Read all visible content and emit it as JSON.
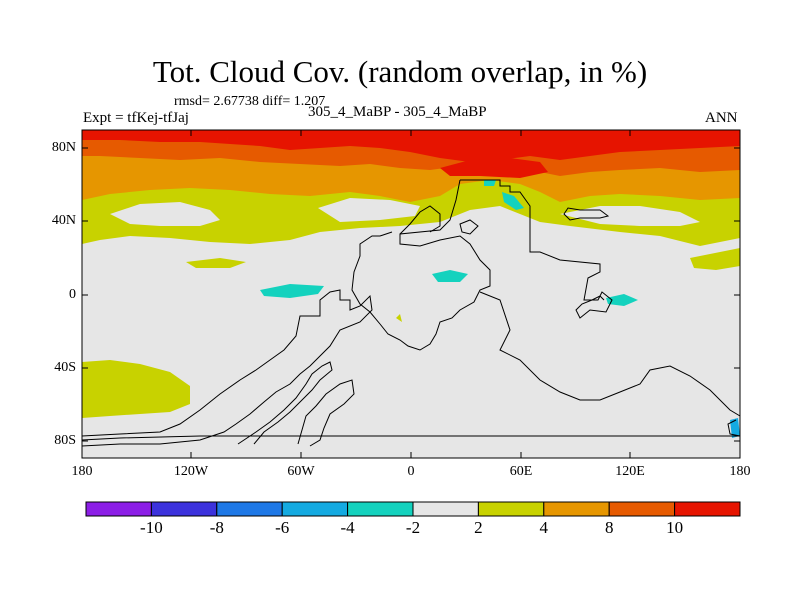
{
  "title": "Tot. Cloud Cov. (random overlap, in %)",
  "stats_line": "rmsd= 2.67738 diff= 1.207",
  "experiment_line": "Expt = tfKej-tfJaj",
  "case_line": "305_4_MaBP - 305_4_MaBP",
  "season": "ANN",
  "x_ticks": [
    "180",
    "120W",
    "60W",
    "0",
    "60E",
    "120E",
    "180"
  ],
  "y_ticks": [
    "80N",
    "40N",
    "0",
    "40S",
    "80S"
  ],
  "colorbar": {
    "labels": [
      "-10",
      "-8",
      "-6",
      "-4",
      "-2",
      "2",
      "4",
      "8",
      "10"
    ],
    "colors": [
      "#8c1ee6",
      "#3c32dc",
      "#1e78e6",
      "#14aae1",
      "#14d2be",
      "#e6e6e6",
      "#c8d200",
      "#e69600",
      "#e65a00",
      "#e61400"
    ]
  },
  "colors": {
    "background": "#e6e6e6",
    "positive_2_4": "#c8d200",
    "positive_4_8": "#e69600",
    "positive_8_10": "#e65a00",
    "positive_over_10": "#e61400",
    "negative_2_4": "#14d2be",
    "negative_4_6": "#14aae1"
  }
}
